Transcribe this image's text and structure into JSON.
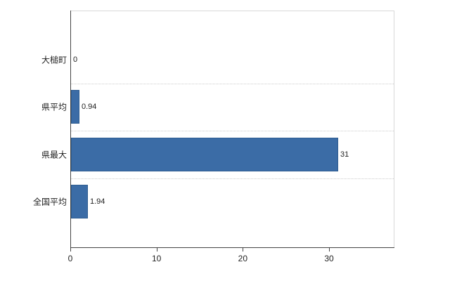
{
  "chart_data": {
    "type": "bar",
    "orientation": "horizontal",
    "title": "",
    "xlabel": "",
    "ylabel": "",
    "categories": [
      "大槌町",
      "県平均",
      "県最大",
      "全国平均"
    ],
    "values": [
      0,
      0.94,
      31,
      1.94
    ],
    "value_labels": [
      "0",
      "0.94",
      "31",
      "1.94"
    ],
    "x_ticks": [
      0,
      10,
      20,
      30
    ],
    "x_tick_labels": [
      "0",
      "10",
      "20",
      "30"
    ],
    "xlim": [
      0,
      37.5
    ],
    "bar_color": "#3B6CA6",
    "bar_border_color": "#2F5D91",
    "grid": "dotted horizontal separators between categories",
    "legend_position": "none",
    "background_color": "#ffffff"
  }
}
